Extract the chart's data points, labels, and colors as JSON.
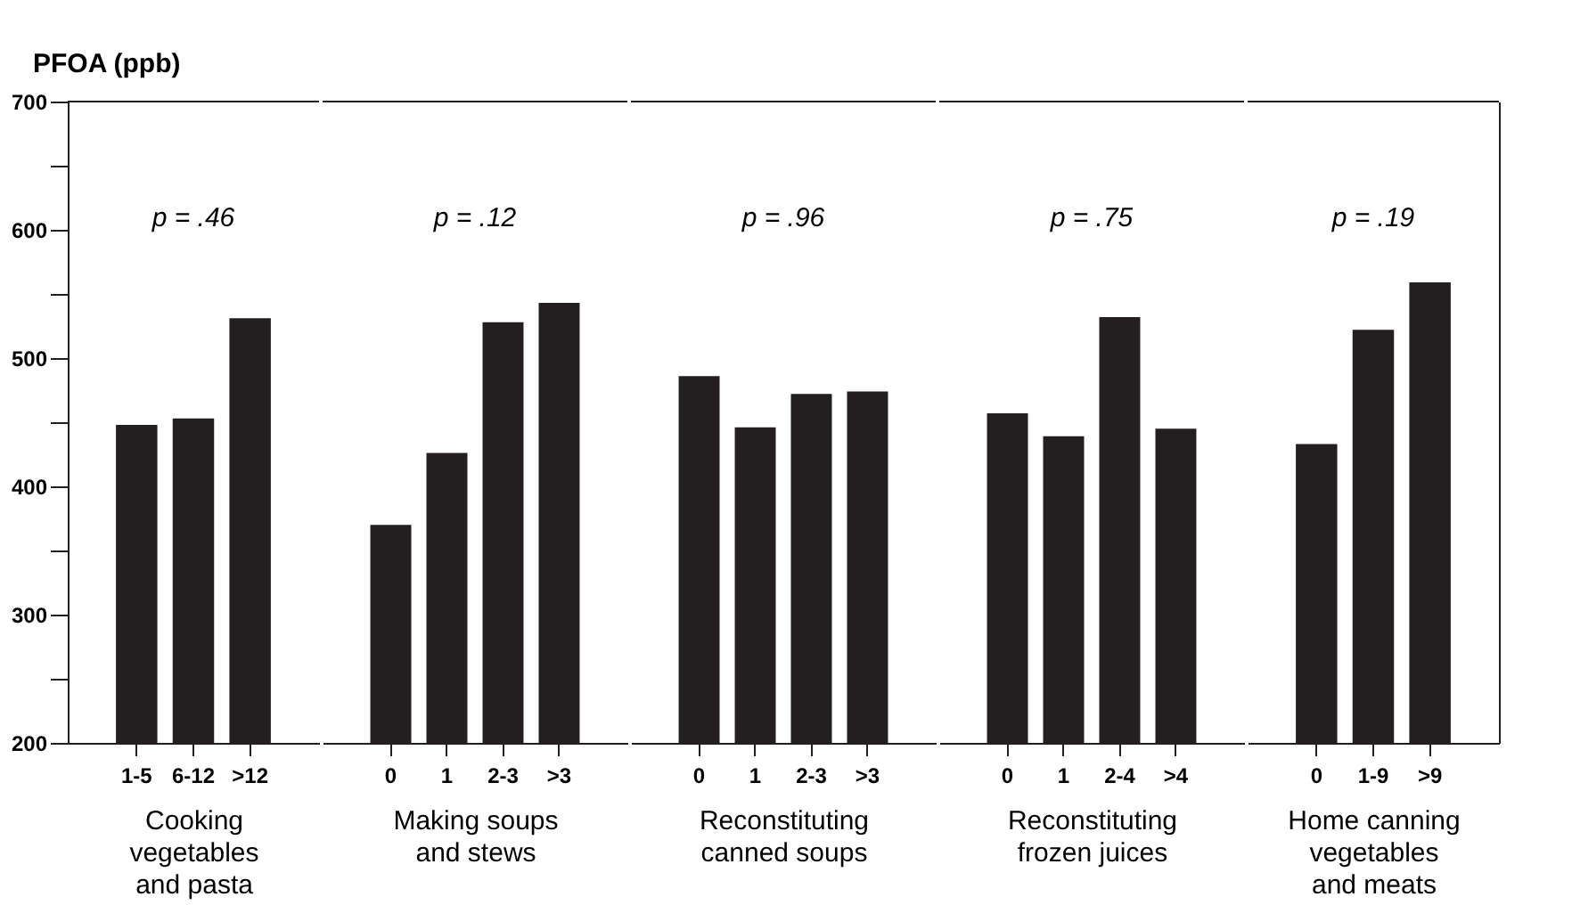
{
  "chart_data": [
    {
      "type": "bar",
      "ylabel": "PFOA (ppb)",
      "xlabel": "Cooking vegetables and pasta",
      "categories": [
        "1-5",
        "6-12",
        ">12"
      ],
      "values": [
        448,
        453,
        531
      ],
      "color": "#231f20",
      "ylim": [
        200,
        700
      ],
      "yticks": [
        200,
        {
          "value": 250,
          "label": null
        },
        300,
        {
          "value": 350,
          "label": null
        },
        400,
        {
          "value": 450,
          "label": null
        },
        500,
        {
          "value": 550,
          "label": null
        },
        600,
        {
          "value": 650,
          "label": null
        },
        700
      ],
      "annotations": [
        "p = .46"
      ]
    },
    {
      "type": "bar",
      "xlabel": "Making soups and stews",
      "categories": [
        "0",
        "1",
        "2-3",
        ">3"
      ],
      "values": [
        370,
        426,
        528,
        543
      ],
      "color": "#231f20",
      "ylim": [
        200,
        700
      ],
      "tick_labels": "x",
      "annotations": [
        "p = .12"
      ]
    },
    {
      "type": "bar",
      "xlabel": "Reconstituting canned soups",
      "categories": [
        "0",
        "1",
        "2-3",
        ">3"
      ],
      "values": [
        486,
        446,
        472,
        474
      ],
      "color": "#231f20",
      "ylim": [
        200,
        700
      ],
      "tick_labels": "x",
      "annotations": [
        "p = .96"
      ]
    },
    {
      "type": "bar",
      "xlabel": "Reconstituting frozen juices",
      "categories": [
        "0",
        "1",
        "2-4",
        ">4"
      ],
      "values": [
        457,
        439,
        532,
        445
      ],
      "color": "#231f20",
      "ylim": [
        200,
        700
      ],
      "tick_labels": "x",
      "annotations": [
        "p = .75"
      ]
    },
    {
      "type": "bar",
      "xlabel": "Home canning vegetables and meats",
      "categories": [
        "0",
        "1-9",
        ">9"
      ],
      "values": [
        433,
        522,
        559
      ],
      "color": "#231f20",
      "ylim": [
        200,
        700
      ],
      "tick_labels": "x",
      "annotations": [
        "p = .19"
      ]
    }
  ]
}
